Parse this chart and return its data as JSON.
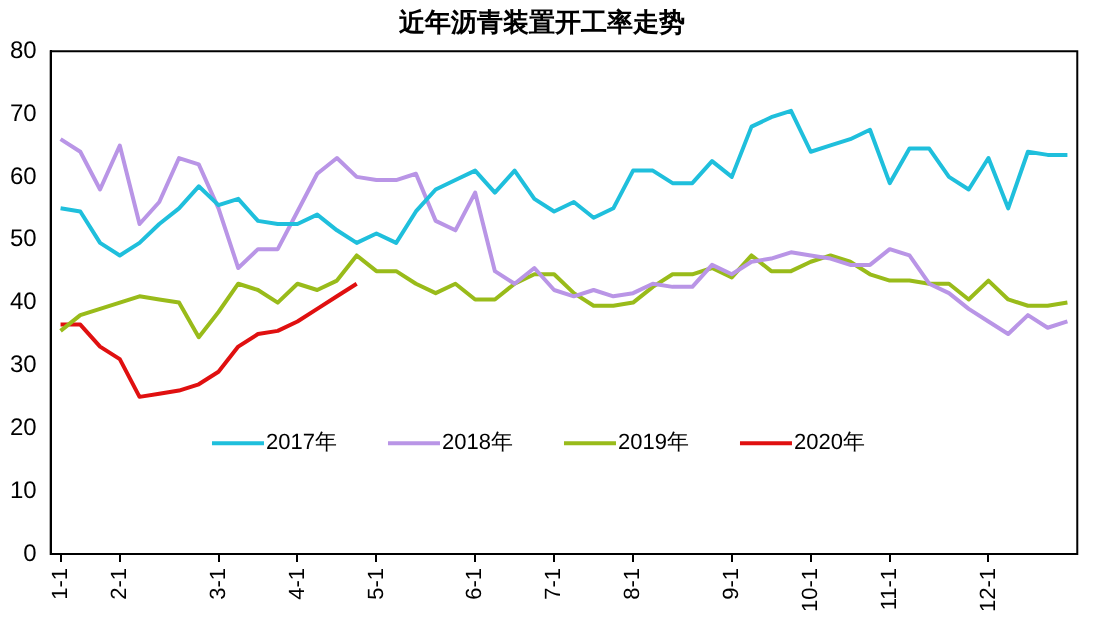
{
  "chart_data": {
    "type": "line",
    "title": "近年沥青装置开工率走势",
    "categories": [
      "1-1",
      null,
      null,
      "2-1",
      null,
      null,
      null,
      null,
      "3-1",
      null,
      null,
      null,
      "4-1",
      null,
      null,
      null,
      "5-1",
      null,
      null,
      null,
      null,
      "6-1",
      null,
      null,
      null,
      "7-1",
      null,
      null,
      null,
      "8-1",
      null,
      null,
      null,
      null,
      "9-1",
      null,
      null,
      null,
      "10-1",
      null,
      null,
      null,
      "11-1",
      null,
      null,
      null,
      null,
      "12-1",
      null,
      null,
      null,
      null
    ],
    "ylim": [
      0,
      80
    ],
    "yticks": [
      0,
      10,
      20,
      30,
      40,
      50,
      60,
      70,
      80
    ],
    "grid": false,
    "legend": "bottom",
    "marker": "none",
    "line_style": "solid",
    "series": [
      {
        "name": "2017年",
        "color": "#1fbfdc",
        "values": [
          55,
          54.5,
          49.5,
          47.5,
          49.5,
          52.5,
          55,
          58.5,
          55.5,
          56.5,
          53,
          52.5,
          52.5,
          54,
          51.5,
          49.5,
          51,
          49.5,
          54.5,
          58,
          59.5,
          61,
          57.5,
          61,
          56.5,
          54.5,
          56,
          53.5,
          55,
          61,
          61,
          59,
          59,
          62.5,
          60,
          68,
          69.5,
          70.5,
          64,
          65,
          66,
          67.5,
          59,
          64.5,
          64.5,
          60,
          58,
          63,
          55,
          64,
          63.5,
          63.5
        ]
      },
      {
        "name": "2018年",
        "color": "#b995e6",
        "values": [
          66,
          64,
          58,
          65,
          52.5,
          56,
          63,
          62,
          55,
          45.5,
          48.5,
          48.5,
          54.5,
          60.5,
          63,
          60,
          59.5,
          59.5,
          60.5,
          53,
          51.5,
          57.5,
          45,
          43,
          45.5,
          42,
          41,
          42,
          41,
          41.5,
          43,
          42.5,
          42.5,
          46,
          44.5,
          46.5,
          47,
          48,
          47.5,
          47,
          46,
          46,
          48.5,
          47.5,
          43,
          41.5,
          39,
          37,
          35,
          38,
          36,
          37
        ]
      },
      {
        "name": "2019年",
        "color": "#99bb1a",
        "values": [
          35.5,
          38,
          39,
          40,
          41,
          40.5,
          40,
          34.5,
          38.5,
          43,
          42,
          40,
          43,
          42,
          43.5,
          47.5,
          45,
          45,
          43,
          41.5,
          43,
          40.5,
          40.5,
          43,
          44.5,
          44.5,
          41.5,
          39.5,
          39.5,
          40,
          42.5,
          44.5,
          44.5,
          45.5,
          44,
          47.5,
          45,
          45,
          46.5,
          47.5,
          46.5,
          44.5,
          43.5,
          43.5,
          43,
          43,
          40.5,
          43.5,
          40.5,
          39.5,
          39.5,
          40
        ]
      },
      {
        "name": "2020年",
        "color": "#e01010",
        "values": [
          36.5,
          36.5,
          33,
          31,
          25,
          25.5,
          26,
          27,
          29,
          33,
          35,
          35.5,
          37,
          39,
          41,
          43,
          null,
          null,
          null,
          null,
          null,
          null,
          null,
          null,
          null,
          null,
          null,
          null,
          null,
          null,
          null,
          null,
          null,
          null,
          null,
          null,
          null,
          null,
          null,
          null,
          null,
          null,
          null,
          null,
          null,
          null,
          null,
          null,
          null,
          null,
          null,
          null
        ]
      }
    ]
  }
}
